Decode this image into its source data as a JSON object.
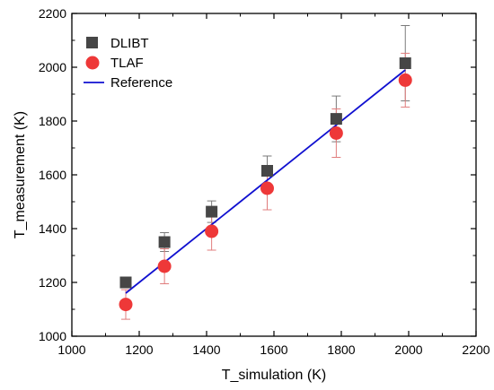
{
  "chart_data": {
    "type": "scatter",
    "xlabel": "T_simulation (K)",
    "ylabel": "T_measurement (K)",
    "xlim": [
      1000,
      2200
    ],
    "ylim": [
      1000,
      2200
    ],
    "xticks": [
      "1000",
      "1200",
      "1400",
      "1600",
      "1800",
      "2000",
      "2200"
    ],
    "yticks": [
      "1000",
      "1200",
      "1400",
      "1600",
      "1800",
      "2000",
      "2200"
    ],
    "grid": false,
    "legend_position": "top-left",
    "series": [
      {
        "name": "DLIBT",
        "marker": "square",
        "color": "#464646",
        "points": [
          {
            "x": 1160,
            "y": 1200,
            "err": 20
          },
          {
            "x": 1275,
            "y": 1350,
            "err": 35
          },
          {
            "x": 1415,
            "y": 1463,
            "err": 40
          },
          {
            "x": 1580,
            "y": 1615,
            "err": 55
          },
          {
            "x": 1785,
            "y": 1808,
            "err": 85
          },
          {
            "x": 1990,
            "y": 2015,
            "err": 140
          }
        ]
      },
      {
        "name": "TLAF",
        "marker": "circle",
        "color": "#ee3838",
        "points": [
          {
            "x": 1160,
            "y": 1118,
            "err": 55
          },
          {
            "x": 1275,
            "y": 1260,
            "err": 65
          },
          {
            "x": 1415,
            "y": 1390,
            "err": 70
          },
          {
            "x": 1580,
            "y": 1550,
            "err": 80
          },
          {
            "x": 1785,
            "y": 1755,
            "err": 90
          },
          {
            "x": 1990,
            "y": 1952,
            "err": 100
          }
        ]
      },
      {
        "name": "Reference",
        "type": "line",
        "color": "#1010d0",
        "points": [
          {
            "x": 1160,
            "y": 1160
          },
          {
            "x": 1990,
            "y": 1990
          }
        ]
      }
    ]
  }
}
